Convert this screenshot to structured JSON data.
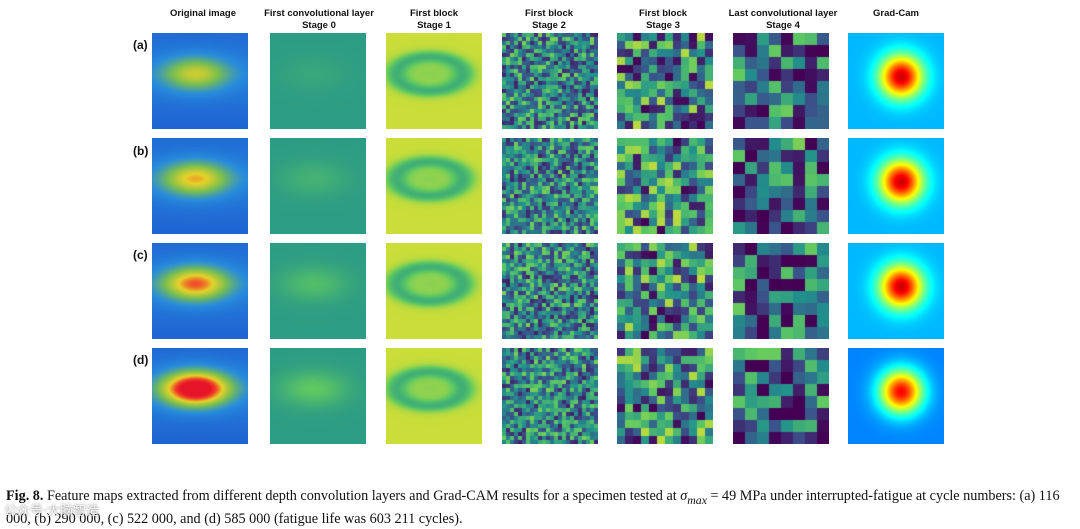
{
  "columns": [
    {
      "line1": "Original image",
      "line2": ""
    },
    {
      "line1": "First convolutional layer",
      "line2": "Stage 0"
    },
    {
      "line1": "First block",
      "line2": "Stage 1"
    },
    {
      "line1": "First block",
      "line2": "Stage 2"
    },
    {
      "line1": "First block",
      "line2": "Stage 3"
    },
    {
      "line1": "Last convolutional layer",
      "line2": "Stage 4"
    },
    {
      "line1": "Grad-Cam",
      "line2": ""
    }
  ],
  "rows": [
    "(a)",
    "(b)",
    "(c)",
    "(d)"
  ],
  "caption": {
    "label": "Fig. 8.",
    "text_before_sigma": " Feature maps extracted from different depth convolution layers and Grad-CAM results for a specimen tested at ",
    "sigma": "σ",
    "sigma_sub": "max",
    "text_after_sigma": " = 49 MPa under interrupted-fatigue at cycle numbers: (a) 116 000, (b) 290 000, (c) 522 000, and (d) 585 000 (fatigue life was 603 211 cycles)."
  },
  "watermark": {
    "text": "公众号·大脑智造"
  }
}
